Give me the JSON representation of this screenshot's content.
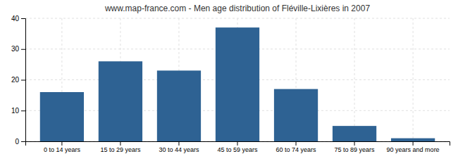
{
  "chart_data": {
    "type": "bar",
    "title": "www.map-france.com - Men age distribution of Fléville-Lixières in 2007",
    "categories": [
      "0 to 14 years",
      "15 to 29 years",
      "30 to 44 years",
      "45 to 59 years",
      "60 to 74 years",
      "75 to 89 years",
      "90 years and more"
    ],
    "values": [
      16,
      26,
      23,
      37,
      17,
      5,
      1
    ],
    "color": "#2e6293",
    "ylim": [
      0,
      40
    ],
    "yticks": [
      0,
      10,
      20,
      30,
      40
    ],
    "grid": true
  }
}
